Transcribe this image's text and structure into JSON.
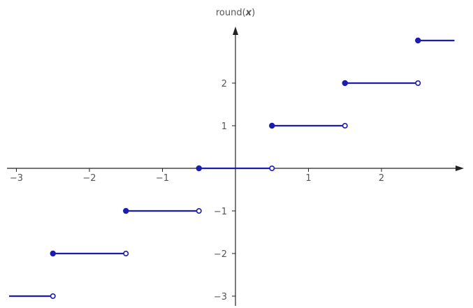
{
  "chart_data": {
    "type": "line",
    "title": "",
    "ylabel_name": "round(",
    "ylabel_var": "x",
    "ylabel_close": ")",
    "xlabel": "",
    "xlim": [
      -3.1,
      3.1
    ],
    "ylim": [
      -3.2,
      3.6
    ],
    "x_ticks": [
      {
        "value": -3,
        "label": "−3"
      },
      {
        "value": -2,
        "label": "−2"
      },
      {
        "value": -1,
        "label": "−1"
      },
      {
        "value": 1,
        "label": "1"
      },
      {
        "value": 2,
        "label": "2"
      }
    ],
    "y_ticks": [
      {
        "value": 2,
        "label": "2"
      },
      {
        "value": 1,
        "label": "1"
      },
      {
        "value": -1,
        "label": "−1"
      },
      {
        "value": -2,
        "label": "−2"
      },
      {
        "value": -3,
        "label": "−3"
      }
    ],
    "series": [
      {
        "color": "#1c1cb0",
        "segments": [
          {
            "x_start": -3.1,
            "x_end": -2.5,
            "y": -3,
            "start_point": "none",
            "end_point": "open"
          },
          {
            "x_start": -2.5,
            "x_end": -1.5,
            "y": -2,
            "start_point": "closed",
            "end_point": "open"
          },
          {
            "x_start": -1.5,
            "x_end": -0.5,
            "y": -1,
            "start_point": "closed",
            "end_point": "open"
          },
          {
            "x_start": -0.5,
            "x_end": 0.5,
            "y": 0,
            "start_point": "closed",
            "end_point": "open"
          },
          {
            "x_start": 0.5,
            "x_end": 1.5,
            "y": 1,
            "start_point": "closed",
            "end_point": "open"
          },
          {
            "x_start": 1.5,
            "x_end": 2.5,
            "y": 2,
            "start_point": "closed",
            "end_point": "open"
          },
          {
            "x_start": 2.5,
            "x_end": 3.0,
            "y": 3,
            "start_point": "closed",
            "end_point": "none"
          }
        ]
      }
    ],
    "grid": false,
    "axis_color": "#222222"
  }
}
